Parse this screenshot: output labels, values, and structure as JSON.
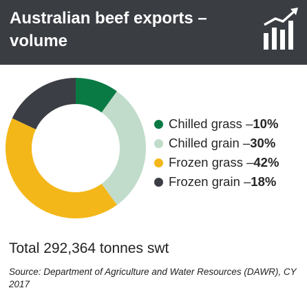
{
  "header": {
    "title": "Australian beef exports – volume",
    "icon": "rising-bar-chart-icon",
    "background_color": "#3a3d42"
  },
  "chart_data": {
    "type": "pie",
    "style": "donut",
    "unit": "%",
    "slices": [
      {
        "label": "Chilled grass",
        "value": 10,
        "color": "#0a7a45"
      },
      {
        "label": "Chilled grain",
        "value": 30,
        "color": "#c1dccb"
      },
      {
        "label": "Frozen grass",
        "value": 42,
        "color": "#f4b719"
      },
      {
        "label": "Frozen grain",
        "value": 18,
        "color": "#3b3e44"
      }
    ],
    "legend_position": "right",
    "start_angle_deg": 0,
    "direction": "clockwise"
  },
  "legend": {
    "separator": " – ",
    "items": [
      {
        "label": "Chilled grass",
        "value_text": "10%"
      },
      {
        "label": "Chilled grain",
        "value_text": "30%"
      },
      {
        "label": "Frozen grass",
        "value_text": "42%"
      },
      {
        "label": "Frozen grain",
        "value_text": "18%"
      }
    ]
  },
  "footer": {
    "total": "Total 292,364 tonnes swt",
    "source": "Source: Department of Agriculture and Water Resources (DAWR), CY 2017"
  }
}
